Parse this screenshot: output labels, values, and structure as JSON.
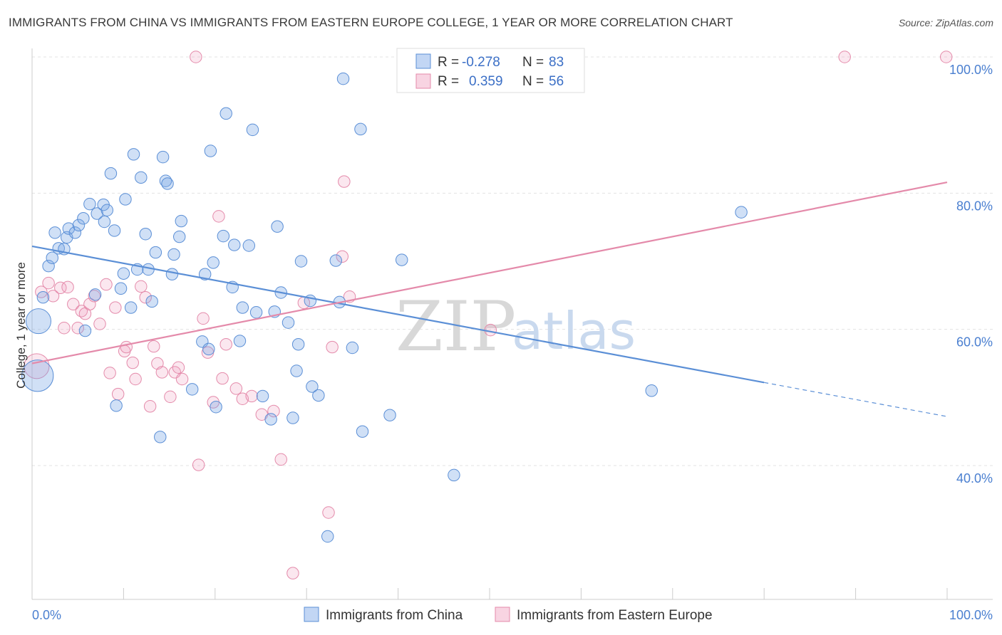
{
  "chart_data": {
    "type": "scatter",
    "title": "IMMIGRANTS FROM CHINA VS IMMIGRANTS FROM EASTERN EUROPE COLLEGE, 1 YEAR OR MORE CORRELATION CHART",
    "source": "Source: ZipAtlas.com",
    "xlabel": "",
    "ylabel": "College, 1 year or more",
    "xlim": [
      0,
      100
    ],
    "ylim": [
      20,
      102
    ],
    "x_tick_labels": [
      "0.0%",
      "100.0%"
    ],
    "y_tick_labels": [
      "40.0%",
      "60.0%",
      "80.0%",
      "100.0%"
    ],
    "y_ticks": [
      40,
      60,
      80,
      100
    ],
    "watermark": {
      "zip": "ZIP",
      "atlas": "atlas"
    },
    "legend": {
      "rows": [
        {
          "r_label": "R =",
          "r_value": "-0.278",
          "n_label": "N =",
          "n_value": "83"
        },
        {
          "r_label": "R =",
          "r_value": "0.359",
          "n_label": "N =",
          "n_value": "56"
        }
      ]
    },
    "series": [
      {
        "name": "Immigrants from China",
        "color": "#5b8fd6",
        "trend_line": {
          "x0": 0,
          "y0": 72.2,
          "x1": 80,
          "y1": 52.2,
          "dash_to_x": 100,
          "dash_to_y": 47.2
        },
        "points": [
          [
            0.7,
            61.2,
            22
          ],
          [
            0.6,
            53.2,
            28
          ],
          [
            1.2,
            64.7,
            10
          ],
          [
            1.8,
            69.3,
            10
          ],
          [
            2.2,
            70.5,
            10
          ],
          [
            2.5,
            74.2,
            10
          ],
          [
            2.9,
            71.9,
            10
          ],
          [
            3.5,
            71.8,
            10
          ],
          [
            3.8,
            73.5,
            10
          ],
          [
            4.0,
            74.8,
            10
          ],
          [
            4.7,
            74.2,
            10
          ],
          [
            5.1,
            75.3,
            10
          ],
          [
            5.6,
            76.3,
            10
          ],
          [
            6.3,
            78.4,
            10
          ],
          [
            7.1,
            77.0,
            10
          ],
          [
            7.9,
            75.8,
            10
          ],
          [
            7.8,
            78.3,
            10
          ],
          [
            8.2,
            77.5,
            10
          ],
          [
            8.6,
            82.9,
            10
          ],
          [
            9.0,
            74.5,
            10
          ],
          [
            9.7,
            66.0,
            10
          ],
          [
            10.0,
            68.2,
            10
          ],
          [
            10.2,
            79.1,
            10
          ],
          [
            10.8,
            63.2,
            10
          ],
          [
            11.1,
            85.7,
            10
          ],
          [
            11.5,
            68.8,
            10
          ],
          [
            11.9,
            82.3,
            10
          ],
          [
            12.4,
            74.0,
            10
          ],
          [
            12.7,
            68.8,
            10
          ],
          [
            13.1,
            64.1,
            10
          ],
          [
            13.5,
            71.3,
            10
          ],
          [
            14.3,
            85.3,
            10
          ],
          [
            14.6,
            81.8,
            10
          ],
          [
            14.8,
            81.4,
            10
          ],
          [
            15.3,
            68.1,
            10
          ],
          [
            15.5,
            71.0,
            10
          ],
          [
            16.1,
            73.6,
            10
          ],
          [
            16.3,
            75.9,
            10
          ],
          [
            17.5,
            51.2,
            10
          ],
          [
            18.6,
            58.2,
            10
          ],
          [
            18.9,
            68.1,
            10
          ],
          [
            19.5,
            86.2,
            10
          ],
          [
            19.3,
            57.1,
            10
          ],
          [
            19.8,
            69.8,
            10
          ],
          [
            20.1,
            48.6,
            10
          ],
          [
            20.9,
            73.7,
            10
          ],
          [
            21.2,
            91.7,
            10
          ],
          [
            21.9,
            66.2,
            10
          ],
          [
            22.1,
            72.4,
            10
          ],
          [
            22.7,
            58.3,
            10
          ],
          [
            23.0,
            63.2,
            10
          ],
          [
            23.7,
            72.3,
            10
          ],
          [
            24.1,
            89.3,
            10
          ],
          [
            24.5,
            62.5,
            10
          ],
          [
            25.2,
            50.2,
            10
          ],
          [
            26.1,
            46.8,
            10
          ],
          [
            26.5,
            62.6,
            10
          ],
          [
            26.8,
            75.1,
            10
          ],
          [
            27.2,
            65.4,
            10
          ],
          [
            28.0,
            61.0,
            10
          ],
          [
            28.5,
            47.0,
            10
          ],
          [
            28.9,
            53.9,
            10
          ],
          [
            29.1,
            57.8,
            10
          ],
          [
            29.4,
            70.0,
            10
          ],
          [
            30.4,
            64.2,
            10
          ],
          [
            30.6,
            51.6,
            10
          ],
          [
            31.3,
            50.3,
            10
          ],
          [
            32.3,
            29.6,
            10
          ],
          [
            33.2,
            70.1,
            10
          ],
          [
            33.6,
            64.0,
            10
          ],
          [
            34.0,
            96.8,
            10
          ],
          [
            35.0,
            57.3,
            10
          ],
          [
            35.9,
            89.4,
            10
          ],
          [
            36.1,
            45.0,
            10
          ],
          [
            39.1,
            47.4,
            10
          ],
          [
            40.4,
            70.2,
            10
          ],
          [
            46.1,
            38.6,
            10
          ],
          [
            67.7,
            51.0,
            10
          ],
          [
            77.5,
            77.2,
            10
          ],
          [
            14.0,
            44.2,
            10
          ],
          [
            6.9,
            65.1,
            10
          ],
          [
            5.8,
            59.8,
            10
          ],
          [
            9.2,
            48.8,
            10
          ]
        ]
      },
      {
        "name": "Immigrants from Eastern Europe",
        "color": "#e48aaa",
        "trend_line": {
          "x0": 0,
          "y0": 55.0,
          "x1": 100,
          "y1": 81.6
        },
        "points": [
          [
            0.5,
            54.6,
            22
          ],
          [
            1.0,
            65.5,
            10
          ],
          [
            1.8,
            66.8,
            10
          ],
          [
            2.3,
            64.9,
            10
          ],
          [
            3.1,
            66.1,
            10
          ],
          [
            3.5,
            60.2,
            10
          ],
          [
            3.9,
            66.2,
            10
          ],
          [
            4.5,
            63.7,
            10
          ],
          [
            5.0,
            60.2,
            10
          ],
          [
            5.4,
            62.7,
            10
          ],
          [
            5.8,
            62.3,
            10
          ],
          [
            6.3,
            63.7,
            10
          ],
          [
            6.8,
            64.9,
            10
          ],
          [
            7.4,
            60.8,
            10
          ],
          [
            8.1,
            66.6,
            10
          ],
          [
            8.5,
            53.6,
            10
          ],
          [
            9.1,
            63.2,
            10
          ],
          [
            9.4,
            50.5,
            10
          ],
          [
            10.1,
            56.8,
            10
          ],
          [
            10.3,
            57.4,
            10
          ],
          [
            11.0,
            55.1,
            10
          ],
          [
            11.3,
            52.7,
            10
          ],
          [
            11.9,
            66.3,
            10
          ],
          [
            12.4,
            64.7,
            10
          ],
          [
            12.9,
            48.7,
            10
          ],
          [
            13.3,
            57.5,
            10
          ],
          [
            13.7,
            55.0,
            10
          ],
          [
            14.2,
            53.7,
            10
          ],
          [
            15.1,
            50.1,
            10
          ],
          [
            15.6,
            53.7,
            10
          ],
          [
            16.0,
            54.4,
            10
          ],
          [
            16.4,
            52.7,
            10
          ],
          [
            17.9,
            100.0,
            10
          ],
          [
            18.2,
            40.1,
            10
          ],
          [
            18.7,
            61.6,
            10
          ],
          [
            19.2,
            56.6,
            10
          ],
          [
            19.8,
            49.3,
            10
          ],
          [
            20.4,
            76.6,
            10
          ],
          [
            20.8,
            52.8,
            10
          ],
          [
            21.2,
            57.8,
            10
          ],
          [
            22.3,
            51.3,
            10
          ],
          [
            23.0,
            49.8,
            10
          ],
          [
            24.0,
            50.2,
            10
          ],
          [
            25.1,
            47.5,
            10
          ],
          [
            26.4,
            48.0,
            10
          ],
          [
            27.2,
            40.9,
            10
          ],
          [
            28.5,
            24.2,
            10
          ],
          [
            29.7,
            63.9,
            10
          ],
          [
            32.4,
            33.1,
            10
          ],
          [
            32.8,
            57.4,
            10
          ],
          [
            33.9,
            70.7,
            10
          ],
          [
            34.7,
            64.8,
            10
          ],
          [
            34.1,
            81.7,
            10
          ],
          [
            50.1,
            59.9,
            10
          ],
          [
            88.8,
            100.0,
            10
          ],
          [
            99.9,
            100.0,
            10
          ]
        ]
      }
    ]
  }
}
